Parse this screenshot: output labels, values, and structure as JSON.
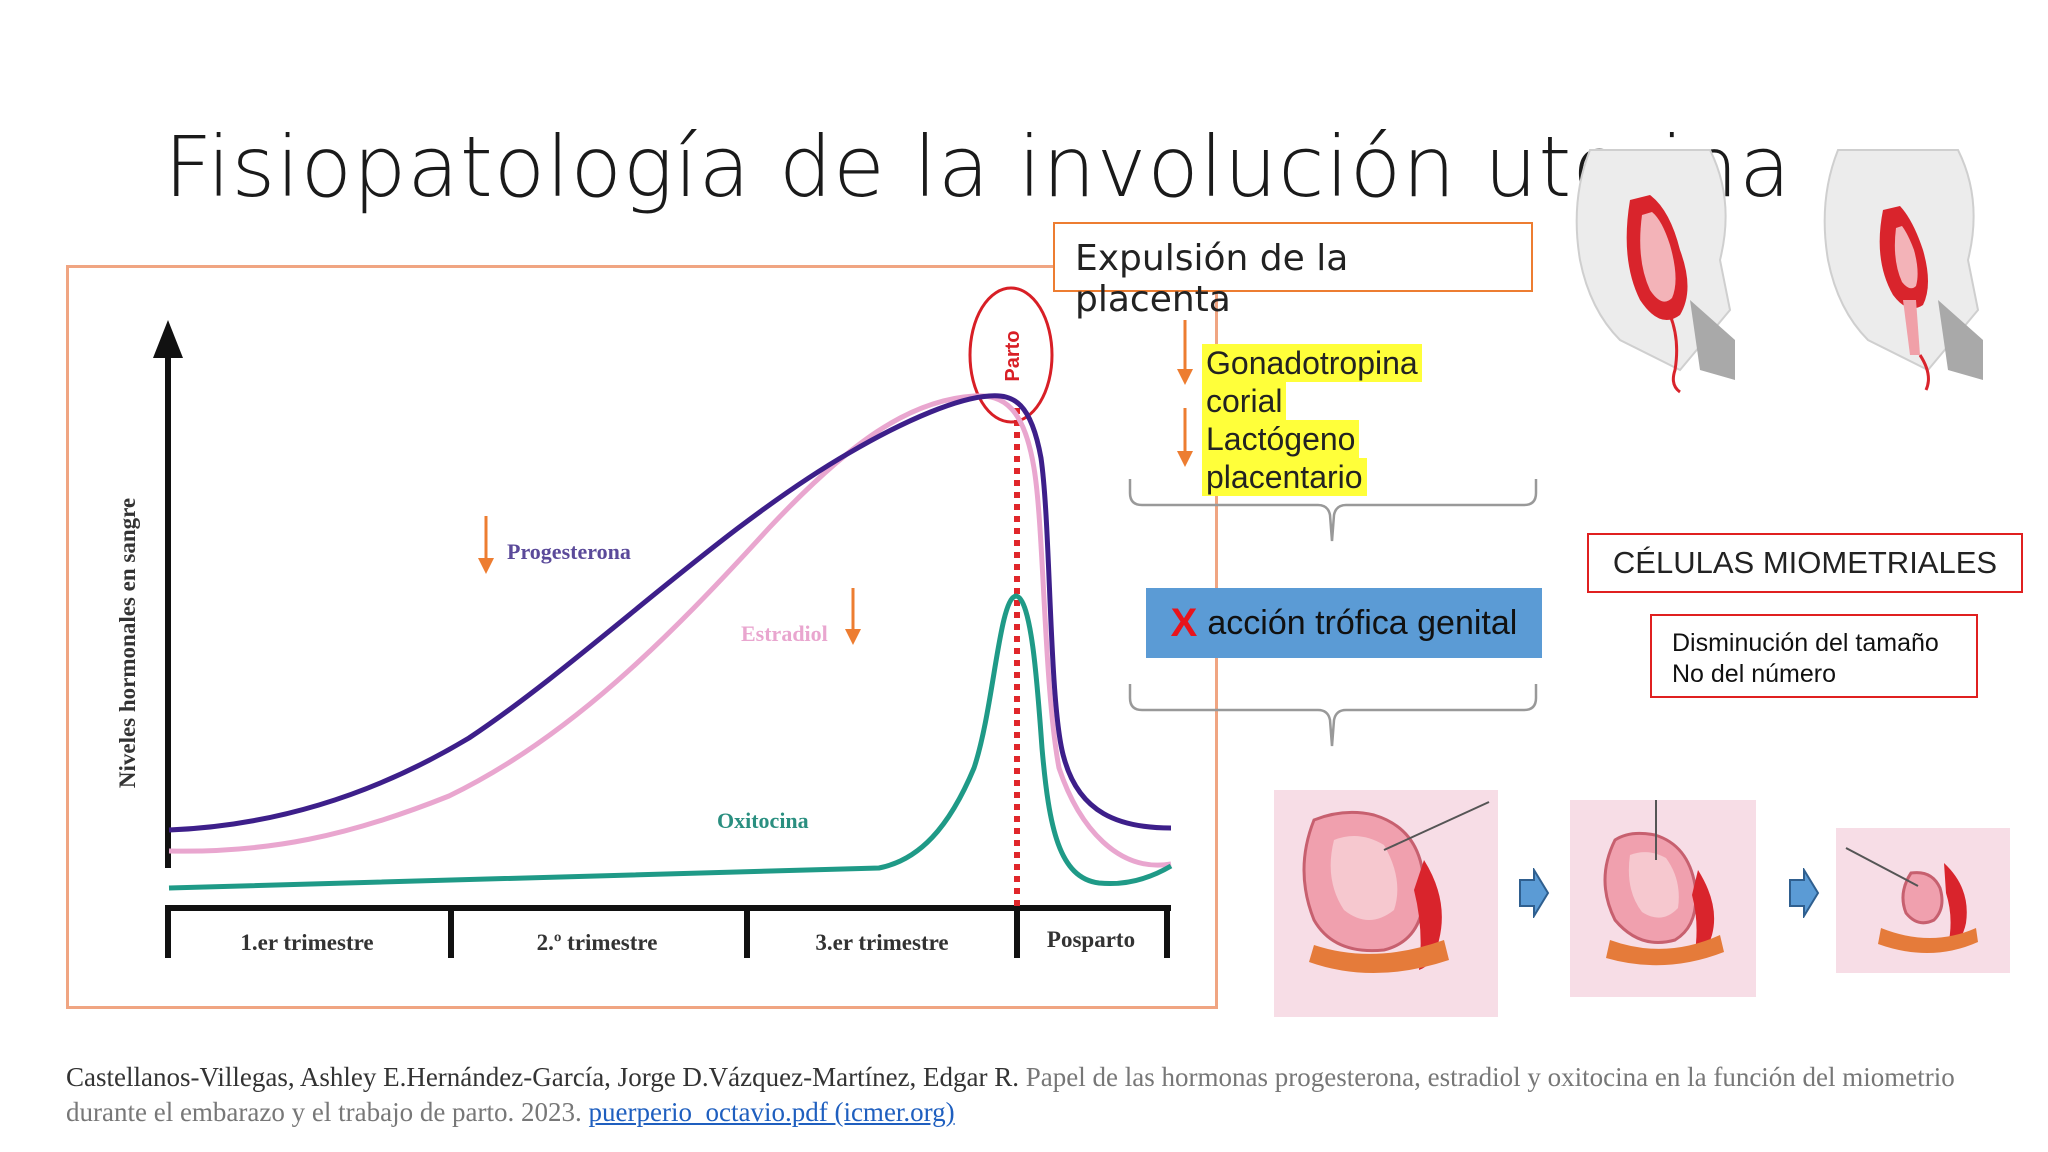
{
  "slide": {
    "title": "Fisiopatología de la involución uterina"
  },
  "chart": {
    "y_axis_label": "Niveles hormonales en sangre",
    "parto_label": "Parto",
    "phases": [
      "1.er trimestre",
      "2.º trimestre",
      "3.er trimestre",
      "Posparto"
    ],
    "curve_labels": {
      "progesterona": "Progesterona",
      "estradiol": "Estradiol",
      "oxitocina": "Oxitocina"
    }
  },
  "chart_data": {
    "type": "line",
    "title": "",
    "xlabel": "",
    "ylabel": "Niveles hormonales en sangre",
    "categories": [
      "1.er trimestre",
      "2.º trimestre",
      "3.er trimestre",
      "Posparto"
    ],
    "series": [
      {
        "name": "Progesterona",
        "trend": "rises through pregnancy, peaks at Parto, drops in Posparto"
      },
      {
        "name": "Estradiol",
        "trend": "rises through pregnancy, peaks at Parto, drops in Posparto"
      },
      {
        "name": "Oxitocina",
        "trend": "low and flat, sharp peak at Parto, drops in Posparto"
      }
    ]
  },
  "colors": {
    "progesterona": "#3d1f8a",
    "estradiol": "#e9a6cf",
    "oxitocina": "#1f9a87",
    "arrow": "#ed7d31",
    "highlight": "#ffff3a",
    "blue_box": "#5b9bd5",
    "red": "#e02020"
  },
  "flow": {
    "placenta": "Expulsión de la placenta",
    "hormone_lines": [
      "Gonadotropina",
      "corial",
      "Lactógeno",
      "placentario"
    ],
    "blue_box_x": "X",
    "blue_box_text": "acción trófica genital"
  },
  "cells": {
    "title": "CÉLULAS MIOMETRIALES",
    "line1": "Disminución del tamaño",
    "line2": "No del número"
  },
  "citation": {
    "authors": "Castellanos-Villegas, Ashley E.Hernández-García, Jorge D.Vázquez-Martínez, Edgar R.",
    "title_text": "Papel de las hormonas progesterona, estradiol y oxitocina en la función del miometrio durante el embarazo y el trabajo de parto. 2023.",
    "link_text": "puerperio_octavio.pdf (icmer.org)"
  },
  "images": [
    "uterus-sagittal-illustration-1",
    "uterus-sagittal-illustration-2",
    "uterus-involution-stage-1",
    "uterus-involution-stage-2",
    "uterus-involution-stage-3"
  ]
}
